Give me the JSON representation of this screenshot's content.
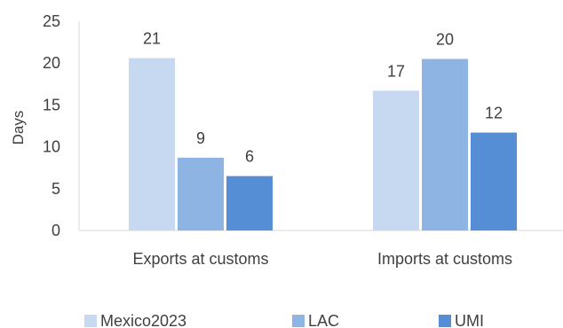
{
  "chart_data": {
    "type": "bar",
    "categories": [
      "Exports at customs",
      "Imports at customs"
    ],
    "series": [
      {
        "name": "Mexico2023",
        "values": [
          21,
          17
        ],
        "color": "#c6d9f1"
      },
      {
        "name": "LAC",
        "values": [
          9,
          20
        ],
        "color": "#8eb4e3"
      },
      {
        "name": "UMI",
        "values": [
          6,
          12
        ],
        "color": "#558ed5"
      }
    ],
    "bar_heights": [
      [
        20.6,
        16.7
      ],
      [
        8.7,
        20.5
      ],
      [
        6.5,
        11.7
      ]
    ],
    "data_labels": [
      [
        "21",
        "17"
      ],
      [
        "9",
        "20"
      ],
      [
        "6",
        "12"
      ]
    ],
    "title": "",
    "xlabel": "",
    "ylabel": "Days",
    "ylim": [
      0,
      25
    ],
    "yticks": [
      0,
      5,
      10,
      15,
      20,
      25
    ],
    "grid": false,
    "legend_position": "bottom"
  }
}
